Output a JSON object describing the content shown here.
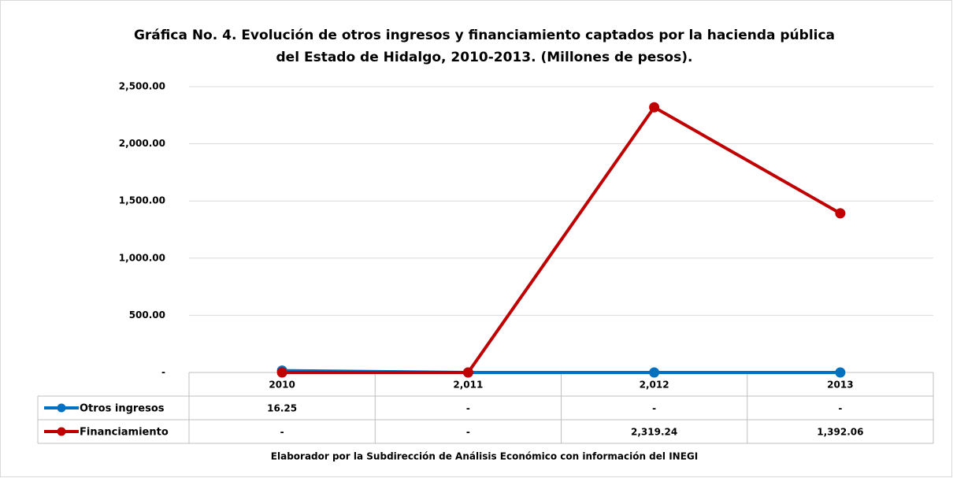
{
  "chart_data": {
    "type": "line",
    "title": [
      "Gráfica No. 4. Evolución de otros ingresos y  financiamiento captados por la hacienda pública",
      "del Estado de Hidalgo, 2010-2013. (Millones de pesos)."
    ],
    "categories": [
      "2010",
      "2,011",
      "2,012",
      "2013"
    ],
    "series": [
      {
        "name": "Otros ingresos",
        "color": "#0070c0",
        "values": [
          16.25,
          0,
          0,
          0
        ],
        "value_labels": [
          "16.25",
          "-",
          "-",
          "-"
        ]
      },
      {
        "name": "Financiamiento",
        "color": "#c00000",
        "values": [
          0,
          0,
          2319.24,
          1392.06
        ],
        "value_labels": [
          "-",
          "-",
          "2,319.24",
          "1,392.06"
        ]
      }
    ],
    "ylim": [
      0,
      2500
    ],
    "yticks": [
      {
        "value": 0,
        "label": "-"
      },
      {
        "value": 500,
        "label": "500.00"
      },
      {
        "value": 1000,
        "label": "1,000.00"
      },
      {
        "value": 1500,
        "label": "1,500.00"
      },
      {
        "value": 2000,
        "label": "2,000.00"
      },
      {
        "value": 2500,
        "label": "2,500.00"
      }
    ],
    "grid": true,
    "source": "Elaborador por la Subdirección de Análisis Económico con información del INEGI"
  }
}
